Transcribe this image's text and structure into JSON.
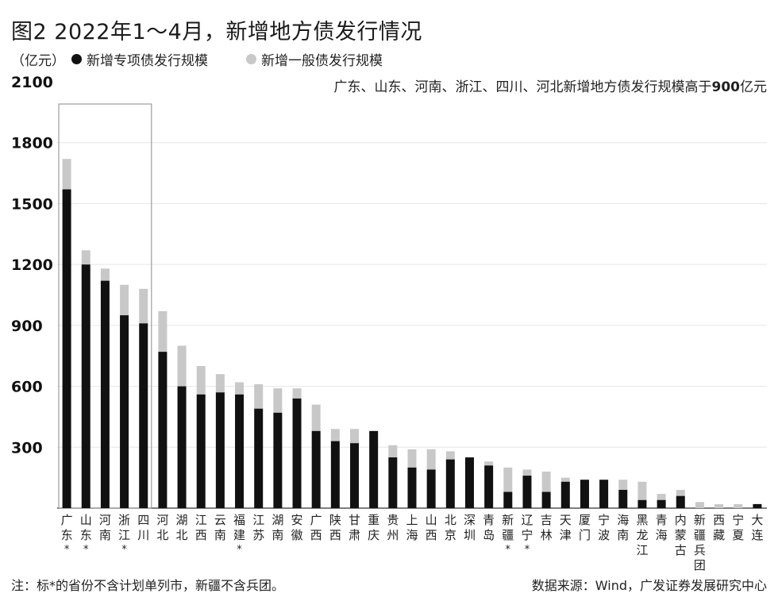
{
  "title": "图2  2022年1～4月，新增地方债发行情况",
  "unit": "（亿元）",
  "legend": [
    {
      "name": "新增专项债发行规模",
      "color": "#111111"
    },
    {
      "name": "新增一般债发行规模",
      "color": "#c8c8c8"
    }
  ],
  "annotation_prefix": "广东、山东、河南、浙江、四川、河北新增地方债发行规模高于",
  "annotation_value": "900",
  "annotation_suffix": "亿元",
  "footnote": "注：标*的省份不含计划单列市，新疆不含兵团。",
  "source": "数据来源：Wind，广发证券发展研究中心",
  "chart_data": {
    "type": "bar",
    "stacked": true,
    "ylim": [
      0,
      2100
    ],
    "yticks": [
      "300",
      "600",
      "900",
      "1200",
      "1500",
      "1800",
      "2100"
    ],
    "highlight_box": "广东 to 四川",
    "categories": [
      "广东",
      "山东",
      "河南",
      "浙江",
      "四川",
      "河北",
      "湖北",
      "江西",
      "云南",
      "福建",
      "江苏",
      "湖南",
      "安徽",
      "广西",
      "陕西",
      "甘肃",
      "重庆",
      "贵州",
      "上海",
      "山西",
      "北京",
      "深圳",
      "青岛",
      "新疆",
      "辽宁",
      "吉林",
      "天津",
      "厦门",
      "宁波",
      "海南",
      "黑龙江",
      "青海",
      "内蒙古",
      "新疆兵团",
      "西藏",
      "宁夏",
      "大连"
    ],
    "starred": [
      "广东",
      "山东",
      "浙江",
      "福建",
      "新疆",
      "辽宁"
    ],
    "series": [
      {
        "name": "新增专项债发行规模",
        "values": [
          1570,
          1200,
          1120,
          950,
          910,
          770,
          600,
          560,
          570,
          560,
          490,
          470,
          540,
          380,
          330,
          320,
          380,
          250,
          200,
          190,
          240,
          250,
          210,
          80,
          160,
          80,
          130,
          140,
          140,
          90,
          40,
          40,
          60,
          0,
          0,
          0,
          20
        ]
      },
      {
        "name": "新增一般债发行规模",
        "values": [
          150,
          70,
          60,
          150,
          170,
          200,
          200,
          140,
          90,
          60,
          120,
          120,
          50,
          130,
          60,
          70,
          0,
          60,
          90,
          100,
          40,
          0,
          20,
          120,
          30,
          100,
          20,
          0,
          0,
          50,
          90,
          30,
          30,
          30,
          20,
          20,
          0
        ]
      }
    ]
  }
}
